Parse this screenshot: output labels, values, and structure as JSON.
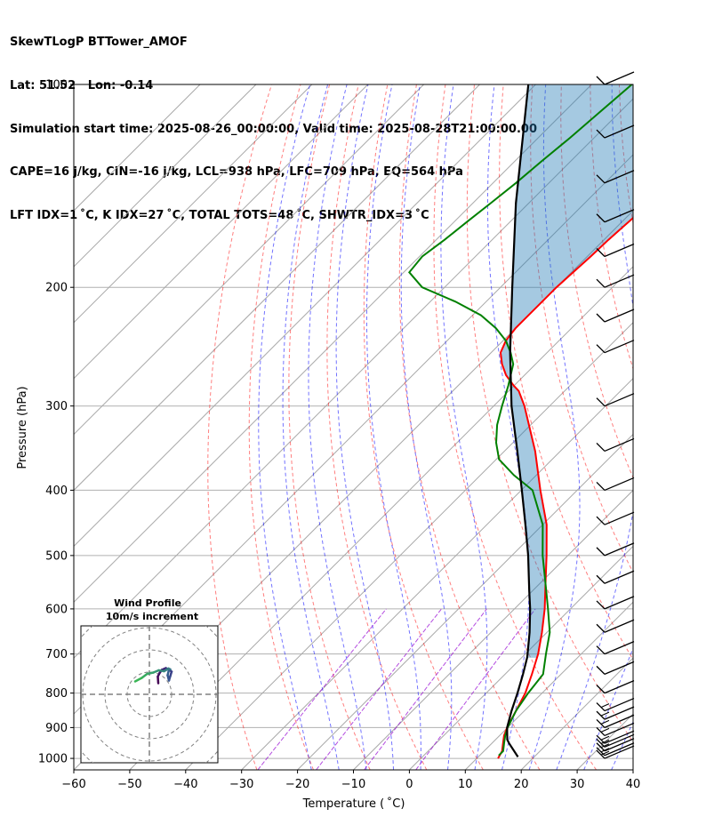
{
  "header": {
    "line1": "SkewTLogP BTTower_AMOF",
    "line2": "Lat: 51.52   Lon: -0.14",
    "line3": "Simulation start time: 2025-08-26_00:00:00, Valid time: 2025-08-28T21:00:00.00",
    "line4": "CAPE=16 j/kg, CIN=-16 j/kg, LCL=938 hPa, LFC=709 hPa, EQ=564 hPa",
    "line5": "LFT IDX=1 ˚C, K IDX=27 ˚C, TOTAL TOTS=48 ˚C, SHWTR_IDX=3 ˚C"
  },
  "chart_data": {
    "type": "skewt",
    "xlabel": "Temperature ( ˚C)",
    "ylabel": "Pressure (hPa)",
    "xlim": [
      -60,
      40
    ],
    "ylim": [
      1040,
      100
    ],
    "x_ticks": [
      -60,
      -50,
      -40,
      -30,
      -20,
      -10,
      0,
      10,
      20,
      30,
      40
    ],
    "y_ticks": [
      100,
      200,
      300,
      400,
      500,
      600,
      700,
      800,
      900,
      1000
    ],
    "colors": {
      "temperature": "#ff0000",
      "dewpoint": "#008000",
      "parcel": "#000000",
      "cape_fill": "#1f77b4",
      "dry_adiabats": "#ff0000",
      "moist_adiabats": "#0000ff",
      "mixing_ratio": "#9400d3",
      "isotherms": "#808080"
    },
    "temperature": {
      "p": [
        1000,
        975,
        950,
        925,
        900,
        850,
        800,
        750,
        700,
        650,
        600,
        550,
        500,
        450,
        400,
        350,
        300,
        285,
        280,
        270,
        260,
        250,
        240,
        230,
        220,
        210,
        200,
        190,
        180,
        170,
        160,
        150,
        140,
        130,
        120,
        110,
        100
      ],
      "t": [
        13.8,
        13.2,
        12.0,
        10.8,
        9.9,
        8.5,
        7.0,
        4.8,
        2.3,
        -0.9,
        -4.6,
        -9.0,
        -13.8,
        -19.3,
        -26.6,
        -34.5,
        -44.5,
        -48.2,
        -50.0,
        -53.3,
        -56.0,
        -58.3,
        -59.5,
        -60.0,
        -60.0,
        -60.0,
        -60.0,
        -59.7,
        -59.4,
        -59.2,
        -58.8,
        -58.4,
        -57.8,
        -57.1,
        -56.1,
        -55.2,
        -54.9
      ]
    },
    "dewpoint": {
      "p": [
        990,
        975,
        950,
        925,
        900,
        850,
        800,
        750,
        700,
        650,
        600,
        550,
        500,
        450,
        400,
        380,
        360,
        340,
        320,
        300,
        280,
        260,
        250,
        240,
        230,
        220,
        210,
        200,
        190,
        180,
        170,
        160,
        150,
        140,
        130,
        120,
        110,
        100
      ],
      "td": [
        13.4,
        13.4,
        12.2,
        11.0,
        10.0,
        8.5,
        7.5,
        6.8,
        3.7,
        0.5,
        -4.0,
        -9.0,
        -14.5,
        -20.0,
        -28.0,
        -34.0,
        -39.5,
        -43.0,
        -46.0,
        -48.5,
        -51.0,
        -54.0,
        -56.5,
        -59.5,
        -63.5,
        -68.5,
        -75.5,
        -84.0,
        -89.0,
        -89.5,
        -88.5,
        -87.7,
        -86.8,
        -85.9,
        -85.2,
        -84.3,
        -83.6,
        -82.8
      ]
    },
    "parcel": {
      "p": [
        995,
        950,
        938,
        900,
        850,
        800,
        750,
        709,
        700,
        650,
        600,
        564,
        500,
        450,
        400,
        350,
        300,
        250,
        200,
        150,
        100
      ],
      "t": [
        17.1,
        13.1,
        12.1,
        9.9,
        7.7,
        5.6,
        3.2,
        1.0,
        0.4,
        -3.1,
        -7.2,
        -10.6,
        -17.1,
        -23.1,
        -29.9,
        -37.7,
        -46.8,
        -56.6,
        -67.9,
        -82.3,
        -101.3
      ]
    },
    "wind_barb_pressures": [
      1000,
      990,
      975,
      962,
      950,
      925,
      900,
      875,
      850,
      800,
      750,
      700,
      650,
      600,
      550,
      500,
      450,
      400,
      350,
      300,
      250,
      225,
      200,
      180,
      160,
      140,
      120,
      100
    ],
    "hodograph": {
      "title": "Wind Profile",
      "subtitle": "10m/s increment",
      "u": [
        2.0,
        1.9,
        2.3,
        2.8,
        3.7,
        4.6,
        5.0,
        4.7,
        4.4,
        4.1,
        4.4,
        4.7,
        4.3,
        3.3,
        2.1,
        0.9,
        -0.5,
        -1.7,
        -3.2
      ],
      "v": [
        2.5,
        4.0,
        4.8,
        5.5,
        5.9,
        5.4,
        5.1,
        4.1,
        3.1,
        4.3,
        5.5,
        5.6,
        5.8,
        5.2,
        5.4,
        4.9,
        4.6,
        3.7,
        2.9
      ]
    }
  }
}
